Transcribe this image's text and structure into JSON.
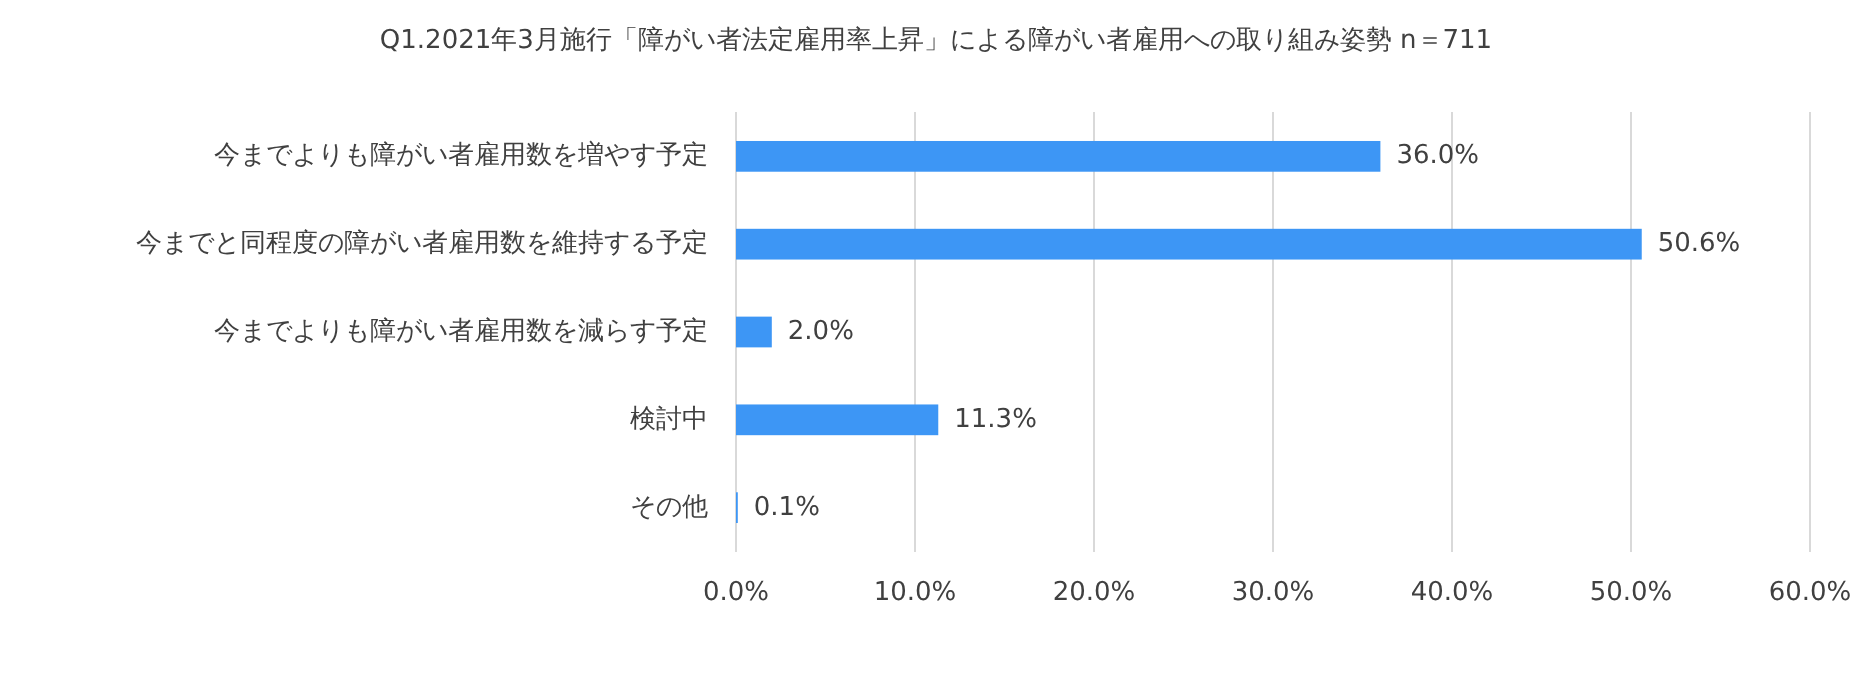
{
  "chart_data": {
    "type": "bar",
    "orientation": "horizontal",
    "title": "Q1.2021年3月施行「障がい者法定雇用率上昇」による障がい者雇用への取り組み姿勢 n＝711",
    "categories": [
      "今までよりも障がい者雇用数を増やす予定",
      "今までと同程度の障がい者雇用数を維持する予定",
      "今までよりも障がい者雇用数を減らす予定",
      "検討中",
      "その他"
    ],
    "values": [
      36.0,
      50.6,
      2.0,
      11.3,
      0.1
    ],
    "value_labels": [
      "36.0%",
      "50.6%",
      "2.0%",
      "11.3%",
      "0.1%"
    ],
    "color": "#3d96f5",
    "xlim": [
      0,
      60
    ],
    "xticks": [
      {
        "value": 0,
        "label": "0.0%"
      },
      {
        "value": 10,
        "label": "10.0%"
      },
      {
        "value": 20,
        "label": "20.0%"
      },
      {
        "value": 30,
        "label": "30.0%"
      },
      {
        "value": 40,
        "label": "40.0%"
      },
      {
        "value": 50,
        "label": "50.0%"
      },
      {
        "value": 60,
        "label": "60.0%"
      }
    ],
    "grid": "x"
  }
}
